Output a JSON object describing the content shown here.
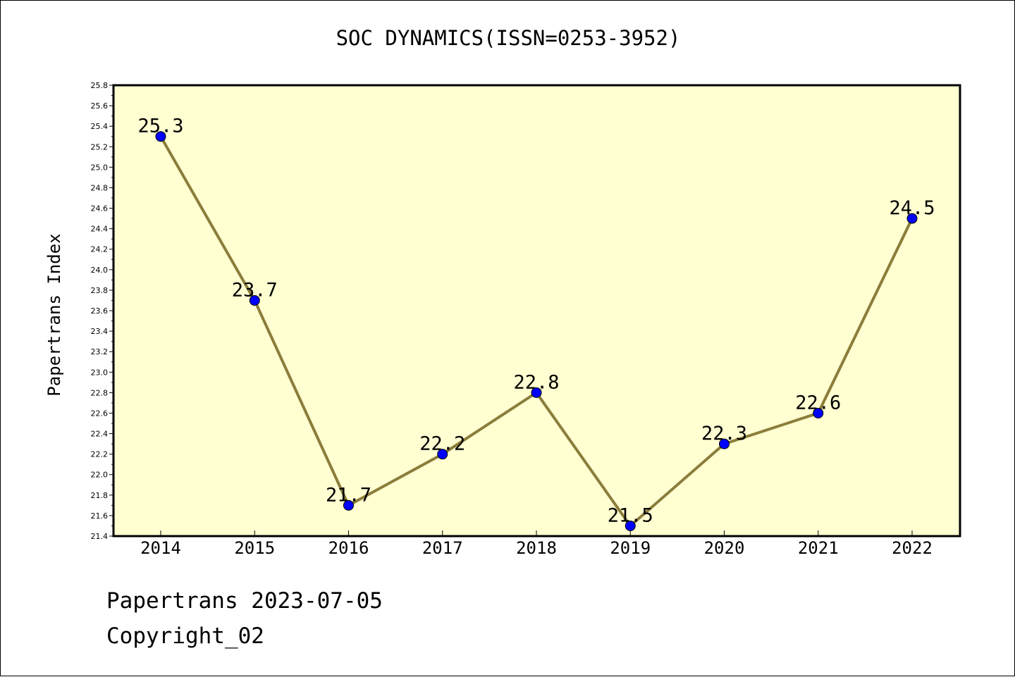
{
  "title": "SOC DYNAMICS(ISSN=0253-3952)",
  "footer": {
    "line1": "Papertrans 2023-07-05",
    "line2": "Copyright_02"
  },
  "colors": {
    "plot_background": "#ffffd2",
    "line": "#8b7d3a",
    "marker": "#0000ff"
  },
  "chart_data": {
    "type": "line",
    "title": "SOC DYNAMICS(ISSN=0253-3952)",
    "xlabel": "",
    "ylabel": "Papertrans Index",
    "categories": [
      "2014",
      "2015",
      "2016",
      "2017",
      "2018",
      "2019",
      "2020",
      "2021",
      "2022"
    ],
    "values": [
      25.3,
      23.7,
      21.7,
      22.2,
      22.8,
      21.5,
      22.3,
      22.6,
      24.5
    ],
    "data_labels": [
      "25.3",
      "23.7",
      "21.7",
      "22.2",
      "22.8",
      "21.5",
      "22.3",
      "22.6",
      "24.5"
    ],
    "ylim": [
      21.4,
      25.8
    ],
    "yticks": [
      "21.4",
      "21.6",
      "21.8",
      "22.0",
      "22.2",
      "22.4",
      "22.6",
      "22.8",
      "23.0",
      "23.2",
      "23.4",
      "23.6",
      "23.8",
      "24.0",
      "24.2",
      "24.4",
      "24.6",
      "24.8",
      "25.0",
      "25.2",
      "25.4",
      "25.6",
      "25.8"
    ],
    "grid": false,
    "legend": "none"
  }
}
